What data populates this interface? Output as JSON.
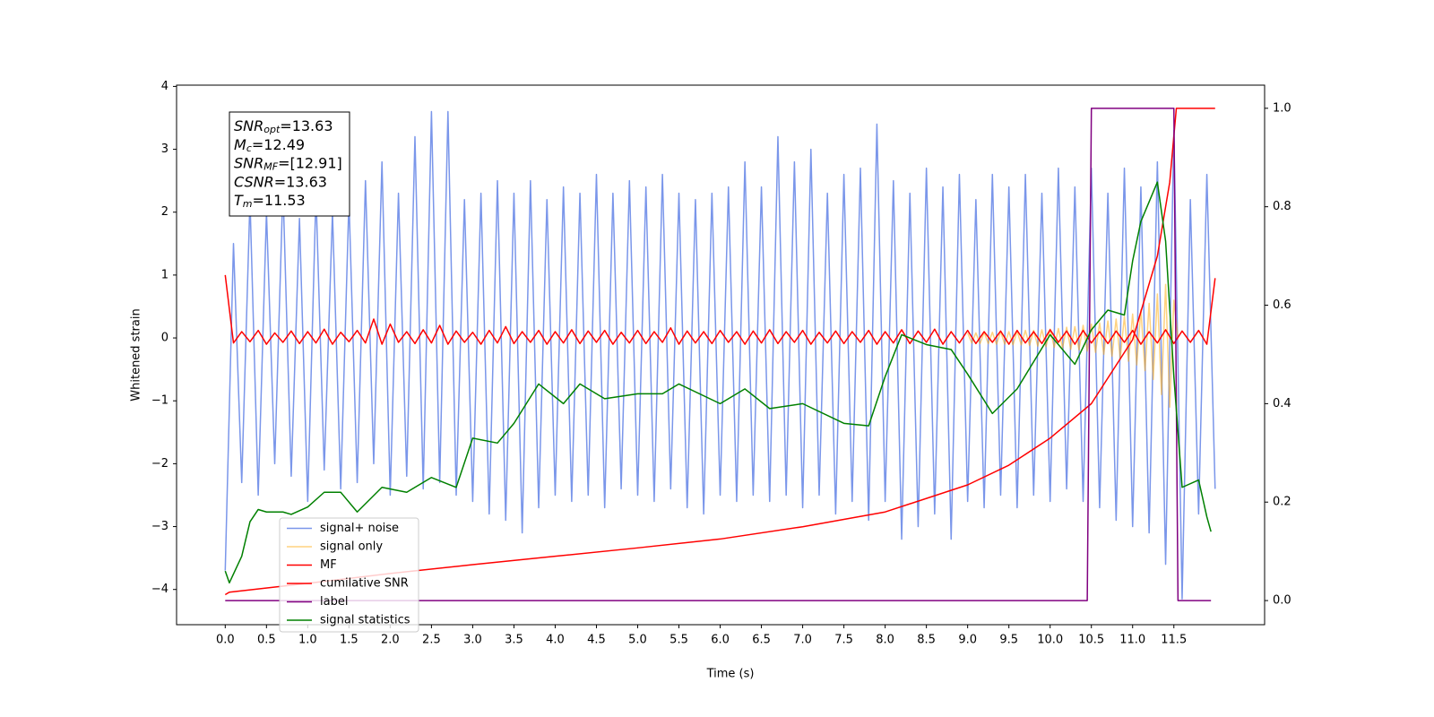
{
  "chart_data": {
    "type": "line",
    "xlabel": "Time (s)",
    "ylabel": "Whitened strain",
    "xlim": [
      -0.59,
      12.6
    ],
    "ylim": [
      -4.56,
      4.02
    ],
    "y2lim": [
      -0.049,
      1.047
    ],
    "xticks": [
      {
        "value": 0,
        "label": "0.0"
      },
      0.5,
      {
        "value": 1,
        "label": "1.0"
      },
      1.5,
      {
        "value": 2,
        "label": "2.0"
      },
      2.5,
      {
        "value": 3,
        "label": "3.0"
      },
      3.5,
      {
        "value": 4,
        "label": "4.0"
      },
      4.5,
      {
        "value": 5,
        "label": "5.0"
      },
      5.5,
      {
        "value": 6,
        "label": "6.0"
      },
      6.5,
      {
        "value": 7,
        "label": "7.0"
      },
      7.5,
      {
        "value": 8,
        "label": "8.0"
      },
      8.5,
      {
        "value": 9,
        "label": "9.0"
      },
      9.5,
      {
        "value": 10,
        "label": "10.0"
      },
      10.5,
      {
        "value": 11,
        "label": "11.0"
      },
      11.5
    ],
    "yticks": [
      {
        "value": -4,
        "label": "−4"
      },
      {
        "value": -3,
        "label": "−3"
      },
      {
        "value": -2,
        "label": "−2"
      },
      {
        "value": -1,
        "label": "−1"
      },
      0,
      1,
      2,
      3,
      4
    ],
    "y2ticks": [
      {
        "value": 0,
        "label": "0.0"
      },
      0.2,
      0.4,
      0.6,
      0.8,
      {
        "value": 1,
        "label": "1.0"
      }
    ],
    "legend": "lower left",
    "annotations": [
      {
        "symbol": "SNR",
        "subscript": "opt",
        "text": "=13.63"
      },
      {
        "symbol": "M",
        "subscript": "c",
        "text": "=12.49"
      },
      {
        "symbol": "SNR",
        "subscript": "MF",
        "text": "=[12.91]"
      },
      {
        "symbol": "CSNR",
        "text": "=13.63"
      },
      {
        "symbol": "T",
        "subscript": "m",
        "text": "=11.53"
      }
    ],
    "x": [
      0,
      0.1,
      0.2,
      0.3,
      0.4,
      0.5,
      0.6,
      0.7,
      0.8,
      0.9,
      1,
      1.1,
      1.2,
      1.3,
      1.4,
      1.5,
      1.6,
      1.7,
      1.8,
      1.9,
      2,
      2.1,
      2.2,
      2.3,
      2.4,
      2.5,
      2.6,
      2.7,
      2.8,
      2.9,
      3,
      3.1,
      3.2,
      3.3,
      3.4,
      3.5,
      3.6,
      3.7,
      3.8,
      3.9,
      4,
      4.1,
      4.2,
      4.3,
      4.4,
      4.5,
      4.6,
      4.7,
      4.8,
      4.9,
      5,
      5.1,
      5.2,
      5.3,
      5.4,
      5.5,
      5.6,
      5.7,
      5.8,
      5.9,
      6,
      6.1,
      6.2,
      6.3,
      6.4,
      6.5,
      6.6,
      6.7,
      6.8,
      6.9,
      7,
      7.1,
      7.2,
      7.3,
      7.4,
      7.5,
      7.6,
      7.7,
      7.8,
      7.9,
      8,
      8.1,
      8.2,
      8.3,
      8.4,
      8.5,
      8.6,
      8.7,
      8.8,
      8.9,
      9,
      9.1,
      9.2,
      9.3,
      9.4,
      9.5,
      9.6,
      9.7,
      9.8,
      9.9,
      10,
      10.1,
      10.2,
      10.3,
      10.4,
      10.5,
      10.6,
      10.7,
      10.8,
      10.9,
      11,
      11.1,
      11.2,
      11.3,
      11.4,
      11.5,
      11.6,
      11.7,
      11.8,
      11.9,
      12
    ],
    "series": [
      {
        "name": "signal+ noise",
        "color": "#4169e1",
        "opacity": 0.7,
        "values": [
          -3.7,
          1.5,
          -2.3,
          2.2,
          -2.5,
          2.0,
          -2.0,
          2.4,
          -2.2,
          1.9,
          -2.6,
          2.3,
          -2.1,
          2.0,
          -2.4,
          2.2,
          -2.3,
          2.5,
          -2.0,
          2.8,
          -2.5,
          2.3,
          -2.2,
          3.2,
          -2.4,
          3.6,
          -2.3,
          3.6,
          -2.5,
          2.2,
          -2.6,
          2.3,
          -2.8,
          2.5,
          -2.9,
          2.3,
          -3.1,
          2.5,
          -2.7,
          2.2,
          -2.5,
          2.4,
          -2.6,
          2.3,
          -2.5,
          2.6,
          -2.7,
          2.3,
          -2.4,
          2.5,
          -2.5,
          2.4,
          -2.6,
          2.6,
          -2.4,
          2.3,
          -2.7,
          2.2,
          -2.8,
          2.3,
          -2.5,
          2.4,
          -2.6,
          2.8,
          -2.5,
          2.4,
          -2.6,
          3.2,
          -2.5,
          2.8,
          -2.7,
          3.0,
          -2.5,
          2.3,
          -2.8,
          2.6,
          -2.6,
          2.7,
          -2.9,
          3.4,
          -2.6,
          2.5,
          -3.2,
          2.3,
          -3.0,
          2.7,
          -2.8,
          2.4,
          -3.2,
          2.6,
          -2.6,
          2.2,
          -2.7,
          2.6,
          -2.5,
          2.4,
          -2.7,
          2.6,
          -2.5,
          2.3,
          -2.6,
          2.7,
          -2.4,
          2.4,
          -2.6,
          2.7,
          -2.7,
          2.3,
          -2.9,
          2.7,
          -3.0,
          2.4,
          -3.1,
          2.8,
          -3.6,
          3.3,
          -4.15,
          2.2,
          -2.8,
          2.6,
          -2.4
        ]
      },
      {
        "name": "signal only",
        "color": "#ffa500",
        "opacity": 0.5,
        "x": [
          9,
          9.05,
          9.1,
          9.15,
          9.2,
          9.25,
          9.3,
          9.35,
          9.4,
          9.45,
          9.5,
          9.55,
          9.6,
          9.65,
          9.7,
          9.75,
          9.8,
          9.85,
          9.9,
          9.95,
          10,
          10.05,
          10.1,
          10.15,
          10.2,
          10.25,
          10.3,
          10.35,
          10.4,
          10.45,
          10.5,
          10.55,
          10.6,
          10.65,
          10.7,
          10.75,
          10.8,
          10.85,
          10.9,
          10.95,
          11,
          11.05,
          11.1,
          11.15,
          11.2,
          11.25,
          11.3,
          11.35,
          11.4,
          11.45,
          11.5,
          11.55
        ],
        "values": [
          0.08,
          -0.08,
          0.08,
          -0.09,
          0.09,
          -0.09,
          0.09,
          -0.1,
          0.1,
          -0.1,
          0.1,
          -0.11,
          0.11,
          -0.11,
          0.12,
          -0.12,
          0.12,
          -0.13,
          0.13,
          -0.14,
          0.14,
          -0.15,
          0.15,
          -0.16,
          0.17,
          -0.18,
          0.18,
          -0.19,
          0.2,
          -0.21,
          0.22,
          -0.23,
          0.24,
          -0.26,
          0.27,
          -0.29,
          0.3,
          -0.33,
          0.34,
          -0.37,
          0.38,
          -0.43,
          0.45,
          -0.52,
          0.55,
          -0.66,
          0.7,
          -0.9,
          0.85,
          -1.1,
          0.6,
          0.0
        ]
      },
      {
        "name": "MF",
        "color": "#ff0000",
        "values": [
          1.0,
          -0.08,
          0.1,
          -0.06,
          0.12,
          -0.1,
          0.08,
          -0.07,
          0.11,
          -0.09,
          0.1,
          -0.08,
          0.14,
          -0.1,
          0.09,
          -0.06,
          0.12,
          -0.08,
          0.3,
          -0.1,
          0.22,
          -0.07,
          0.1,
          -0.09,
          0.13,
          -0.08,
          0.2,
          -0.1,
          0.11,
          -0.07,
          0.09,
          -0.1,
          0.12,
          -0.08,
          0.18,
          -0.09,
          0.1,
          -0.07,
          0.12,
          -0.1,
          0.1,
          -0.08,
          0.13,
          -0.09,
          0.11,
          -0.07,
          0.12,
          -0.1,
          0.09,
          -0.08,
          0.12,
          -0.09,
          0.1,
          -0.07,
          0.16,
          -0.1,
          0.11,
          -0.08,
          0.1,
          -0.09,
          0.12,
          -0.07,
          0.1,
          -0.1,
          0.11,
          -0.08,
          0.13,
          -0.09,
          0.1,
          -0.07,
          0.12,
          -0.1,
          0.09,
          -0.08,
          0.11,
          -0.09,
          0.1,
          -0.07,
          0.12,
          -0.1,
          0.1,
          -0.08,
          0.13,
          -0.09,
          0.11,
          -0.07,
          0.14,
          -0.1,
          0.1,
          -0.08,
          0.12,
          -0.09,
          0.1,
          -0.07,
          0.11,
          -0.1,
          0.12,
          -0.08,
          0.1,
          -0.09,
          0.13,
          -0.07,
          0.11,
          -0.1,
          0.12,
          -0.08,
          0.1,
          -0.09,
          0.11,
          -0.07,
          0.12,
          -0.1,
          0.1,
          -0.08,
          0.13,
          -0.09,
          0.11,
          -0.07,
          0.12,
          -0.1,
          0.95
        ]
      },
      {
        "name": "cumilative SNR",
        "color": "#ff0000",
        "axis": "y2",
        "x": [
          0,
          0.05,
          1,
          2,
          3,
          4,
          5,
          6,
          7,
          8,
          9,
          9.5,
          10,
          10.5,
          11,
          11.3,
          11.45,
          11.53,
          12
        ],
        "values": [
          0.012,
          0.017,
          0.035,
          0.055,
          0.073,
          0.09,
          0.107,
          0.125,
          0.15,
          0.18,
          0.235,
          0.275,
          0.33,
          0.4,
          0.53,
          0.7,
          0.85,
          1.0,
          1.0
        ]
      },
      {
        "name": "label",
        "color": "#800080",
        "axis": "y2",
        "x": [
          0,
          10.45,
          10.5,
          11.5,
          11.55,
          11.95
        ],
        "values": [
          0,
          0,
          1,
          1,
          0,
          0
        ]
      },
      {
        "name": "signal statistics",
        "color": "#008000",
        "axis": "y2",
        "x": [
          0,
          0.05,
          0.2,
          0.3,
          0.4,
          0.5,
          0.7,
          0.8,
          1.0,
          1.2,
          1.4,
          1.6,
          1.9,
          2.2,
          2.5,
          2.8,
          3.0,
          3.3,
          3.5,
          3.8,
          4.1,
          4.3,
          4.6,
          5.0,
          5.3,
          5.5,
          6.0,
          6.3,
          6.6,
          7.0,
          7.5,
          7.8,
          8.0,
          8.2,
          8.5,
          8.8,
          9.0,
          9.3,
          9.6,
          10.0,
          10.3,
          10.5,
          10.7,
          10.9,
          11.0,
          11.1,
          11.3,
          11.4,
          11.5,
          11.6,
          11.8,
          11.9,
          11.95
        ],
        "values": [
          0.06,
          0.036,
          0.09,
          0.16,
          0.185,
          0.18,
          0.18,
          0.175,
          0.19,
          0.22,
          0.22,
          0.18,
          0.23,
          0.22,
          0.25,
          0.23,
          0.33,
          0.32,
          0.36,
          0.44,
          0.4,
          0.44,
          0.41,
          0.42,
          0.42,
          0.44,
          0.4,
          0.43,
          0.39,
          0.4,
          0.36,
          0.355,
          0.455,
          0.54,
          0.52,
          0.51,
          0.46,
          0.38,
          0.43,
          0.54,
          0.48,
          0.55,
          0.59,
          0.58,
          0.69,
          0.77,
          0.85,
          0.73,
          0.455,
          0.23,
          0.245,
          0.17,
          0.14
        ]
      }
    ]
  }
}
